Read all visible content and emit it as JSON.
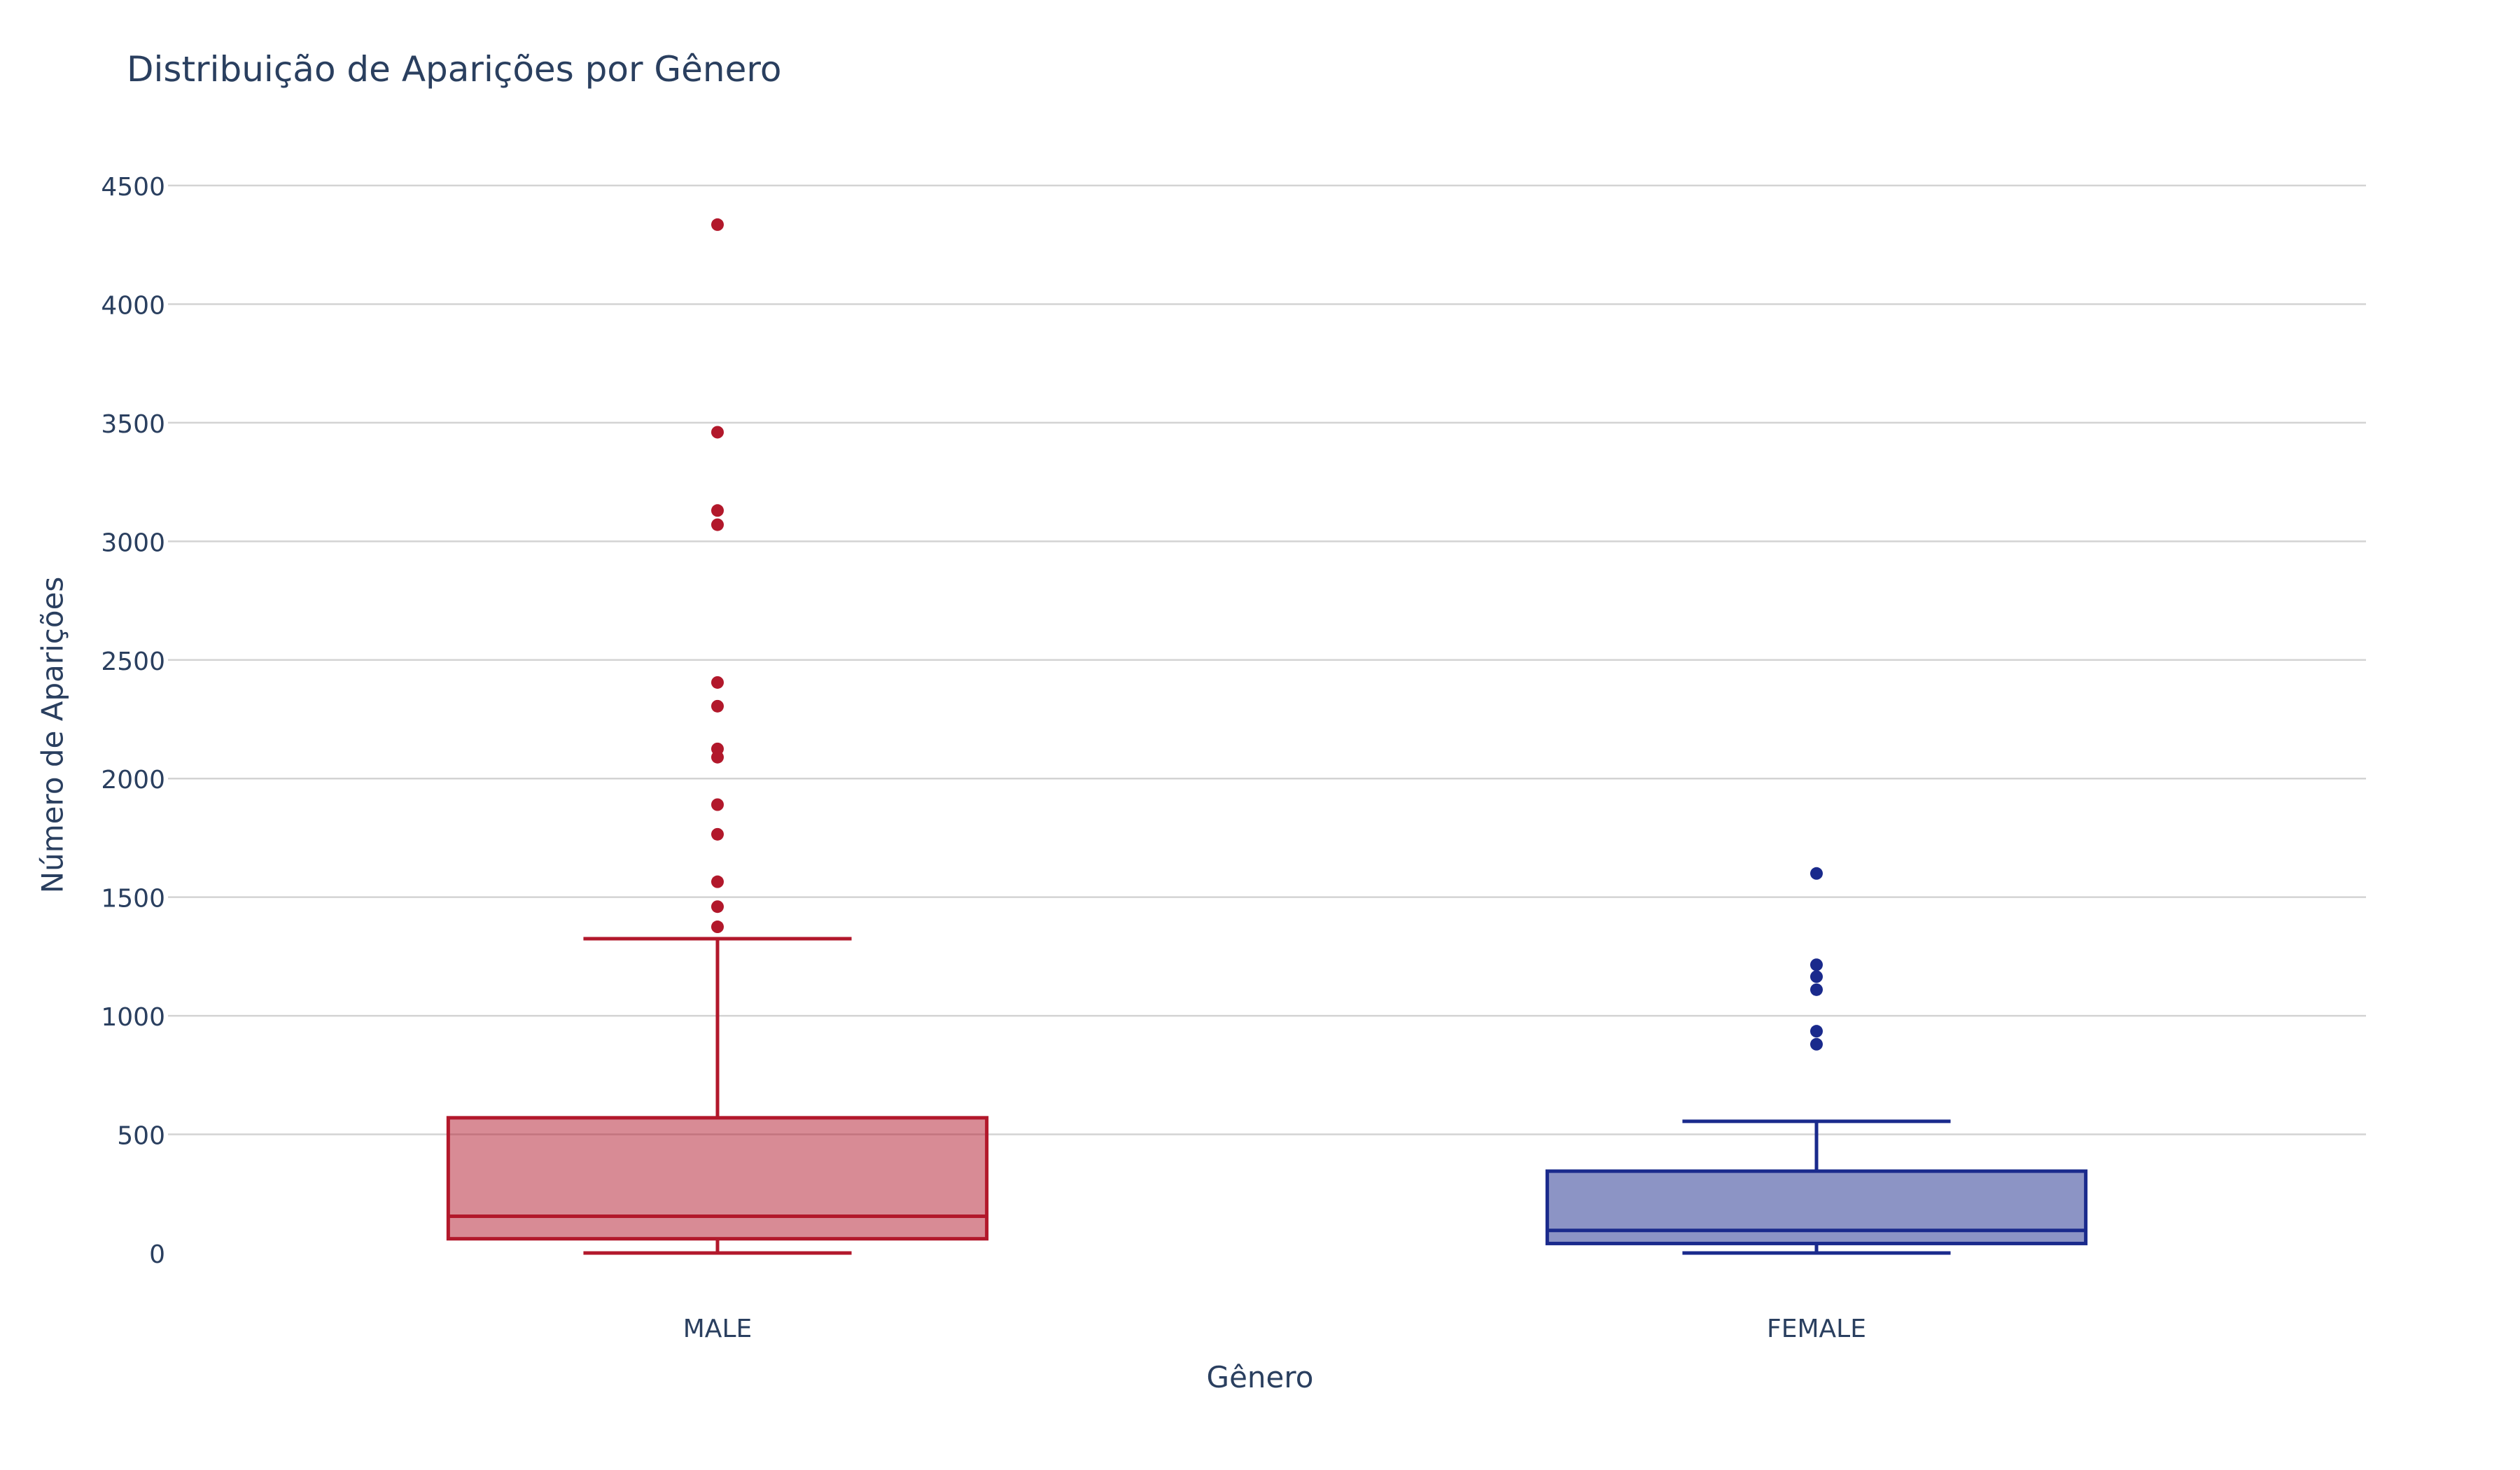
{
  "chart_data": {
    "type": "box",
    "title": "Distribuição de Aparições por Gênero",
    "xlabel": "Gênero",
    "ylabel": "Número de Aparições",
    "ylim": [
      -250,
      4750
    ],
    "yticks": [
      0,
      500,
      1000,
      1500,
      2000,
      2500,
      3000,
      3500,
      4000,
      4500
    ],
    "grid": true,
    "legend": "none",
    "categories": [
      "MALE",
      "FEMALE"
    ],
    "series": [
      {
        "category": "MALE",
        "color": "#b2182b",
        "fill": "rgba(178,24,43,0.5)",
        "min": 0,
        "q1": 60,
        "median": 155,
        "q3": 570,
        "max": 1325,
        "outliers": [
          1375,
          1460,
          1565,
          1765,
          1890,
          2090,
          2125,
          2305,
          2405,
          3070,
          3130,
          3460,
          4335
        ]
      },
      {
        "category": "FEMALE",
        "color": "#1a2a8c",
        "fill": "rgba(26,42,140,0.5)",
        "min": 0,
        "q1": 40,
        "median": 95,
        "q3": 345,
        "max": 555,
        "outliers": [
          880,
          935,
          1110,
          1165,
          1215,
          1600
        ]
      }
    ]
  }
}
